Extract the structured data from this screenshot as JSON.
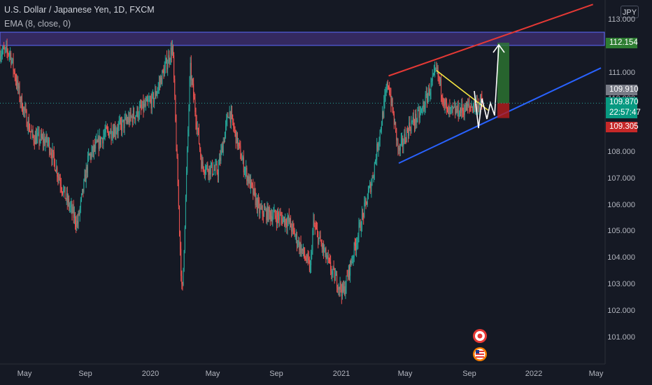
{
  "header": {
    "title": "U.S. Dollar / Japanese Yen, 1D, FXCM",
    "indicator": "EMA (8, close, 0)",
    "currency": "JPY"
  },
  "axis": {
    "y_ticks": [
      "113.000",
      "112.000",
      "111.000",
      "110.000",
      "109.000",
      "108.000",
      "107.000",
      "106.000",
      "105.000",
      "104.000",
      "103.000",
      "102.000",
      "101.000"
    ],
    "x_ticks": [
      "May",
      "Sep",
      "2020",
      "May",
      "Sep",
      "2021",
      "May",
      "Sep",
      "2022",
      "May"
    ]
  },
  "price_tags": {
    "target": "112.154",
    "ema": "109.910",
    "last_price": "109.870",
    "countdown": "22:57:47",
    "stop": "109.305"
  },
  "colors": {
    "background": "#151924",
    "up": "#26a69a",
    "down": "#ef5350",
    "resistance_zone": "#5b3fa8",
    "upper_line": "#e53935",
    "lower_line": "#2962ff",
    "triangle_top": "#f5e642",
    "target_box": "#2e7d32",
    "stop_box": "#b71c1c"
  },
  "icons": [
    "event-flag-icon",
    "us-flag-icon"
  ],
  "chart_data": {
    "type": "candlestick",
    "title": "U.S. Dollar / Japanese Yen, 1D, FXCM",
    "ylim": [
      100.5,
      113.3
    ],
    "y_scale": "linear",
    "x_range": [
      "2019-04",
      "2022-05"
    ],
    "grid": false,
    "series": [
      {
        "name": "USDJPY",
        "approx_close_path": [
          [
            "2019-04-20",
            111.8
          ],
          [
            "2019-05-10",
            110.0
          ],
          [
            "2019-06-01",
            108.6
          ],
          [
            "2019-07-01",
            108.4
          ],
          [
            "2019-08-01",
            106.4
          ],
          [
            "2019-08-25",
            105.3
          ],
          [
            "2019-09-15",
            107.8
          ],
          [
            "2019-10-15",
            108.7
          ],
          [
            "2019-11-15",
            109.0
          ],
          [
            "2019-12-15",
            109.5
          ],
          [
            "2020-01-15",
            110.0
          ],
          [
            "2020-02-20",
            112.0
          ],
          [
            "2020-03-09",
            102.4
          ],
          [
            "2020-03-24",
            111.2
          ],
          [
            "2020-04-15",
            107.5
          ],
          [
            "2020-05-15",
            107.3
          ],
          [
            "2020-06-05",
            109.6
          ],
          [
            "2020-07-01",
            107.6
          ],
          [
            "2020-08-01",
            105.8
          ],
          [
            "2020-09-01",
            105.6
          ],
          [
            "2020-09-25",
            105.4
          ],
          [
            "2020-11-05",
            103.6
          ],
          [
            "2020-11-10",
            105.3
          ],
          [
            "2020-12-15",
            103.5
          ],
          [
            "2021-01-06",
            102.7
          ],
          [
            "2021-02-01",
            104.8
          ],
          [
            "2021-03-01",
            107.0
          ],
          [
            "2021-03-31",
            110.7
          ],
          [
            "2021-04-20",
            108.0
          ],
          [
            "2021-05-10",
            109.0
          ],
          [
            "2021-06-01",
            109.5
          ],
          [
            "2021-06-30",
            111.1
          ],
          [
            "2021-07-20",
            109.5
          ],
          [
            "2021-08-15",
            109.6
          ],
          [
            "2021-09-10",
            109.8
          ],
          [
            "2021-09-25",
            109.87
          ]
        ]
      }
    ],
    "annotations": {
      "resistance_zone": [
        112.05,
        112.55
      ],
      "upper_trendline": [
        [
          "2021-04-01",
          110.9
        ],
        [
          "2022-04-20",
          113.6
        ]
      ],
      "lower_trendline": [
        [
          "2021-04-20",
          107.6
        ],
        [
          "2022-05-05",
          111.2
        ]
      ],
      "triangle_upper_line": [
        [
          "2021-06-30",
          111.1
        ],
        [
          "2021-10-05",
          109.6
        ]
      ],
      "projection_target": 112.154,
      "projection_stop": 109.305,
      "last_price": 109.87,
      "ema_value": 109.91
    }
  }
}
